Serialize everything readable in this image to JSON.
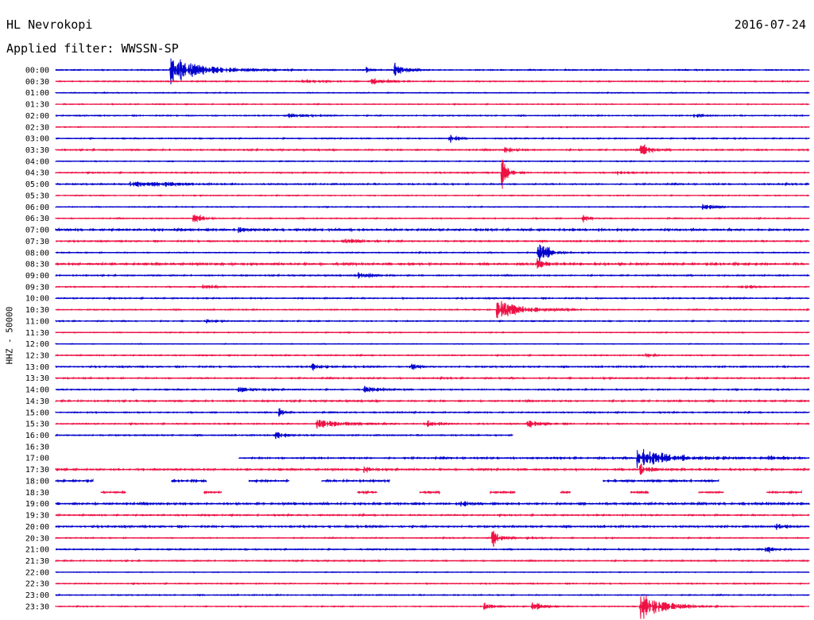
{
  "header": {
    "station": "HL Nevrokopi",
    "date": "2016-07-24",
    "filter": "Applied filter: WWSSN-SP"
  },
  "chart_data": {
    "type": "line",
    "ylabel": "HHZ - 50000",
    "colors": [
      "#0000cc",
      "#ee1144"
    ],
    "x_range_minutes": [
      0,
      30
    ],
    "rows": [
      {
        "label": "00:00",
        "start": 0,
        "end": 30,
        "noise": 0.6,
        "events": [
          {
            "t": 4.6,
            "amp": 18,
            "dur": 1.8
          },
          {
            "t": 13.5,
            "amp": 9,
            "dur": 0.6
          },
          {
            "t": 12.4,
            "amp": 3,
            "dur": 0.4
          }
        ]
      },
      {
        "label": "00:30",
        "start": 0,
        "end": 30,
        "noise": 0.6,
        "events": [
          {
            "t": 12.6,
            "amp": 3,
            "dur": 0.8
          },
          {
            "t": 9.8,
            "amp": 1.5,
            "dur": 1.2
          }
        ]
      },
      {
        "label": "01:00",
        "start": 0,
        "end": 30,
        "noise": 0.5,
        "events": []
      },
      {
        "label": "01:30",
        "start": 0,
        "end": 30,
        "noise": 0.5,
        "events": []
      },
      {
        "label": "02:00",
        "start": 0,
        "end": 30,
        "noise": 0.6,
        "events": [
          {
            "t": 9.2,
            "amp": 3,
            "dur": 0.8
          },
          {
            "t": 25.4,
            "amp": 1.5,
            "dur": 0.6
          }
        ]
      },
      {
        "label": "02:30",
        "start": 0,
        "end": 30,
        "noise": 0.5,
        "events": []
      },
      {
        "label": "03:00",
        "start": 0,
        "end": 30,
        "noise": 0.6,
        "events": [
          {
            "t": 15.7,
            "amp": 8,
            "dur": 0.3
          }
        ]
      },
      {
        "label": "03:30",
        "start": 0,
        "end": 30,
        "noise": 0.8,
        "events": [
          {
            "t": 23.3,
            "amp": 11,
            "dur": 0.4
          },
          {
            "t": 17.9,
            "amp": 3,
            "dur": 0.5
          }
        ]
      },
      {
        "label": "04:00",
        "start": 0,
        "end": 30,
        "noise": 0.5,
        "events": []
      },
      {
        "label": "04:30",
        "start": 0,
        "end": 30,
        "noise": 0.7,
        "events": [
          {
            "t": 17.8,
            "amp": 25,
            "dur": 0.3
          },
          {
            "t": 22.3,
            "amp": 2,
            "dur": 0.6
          }
        ]
      },
      {
        "label": "05:00",
        "start": 0,
        "end": 30,
        "noise": 0.8,
        "events": [
          {
            "t": 3.0,
            "amp": 4,
            "dur": 1.2
          },
          {
            "t": 4.4,
            "amp": 2,
            "dur": 0.8
          }
        ]
      },
      {
        "label": "05:30",
        "start": 0,
        "end": 30,
        "noise": 0.5,
        "events": []
      },
      {
        "label": "06:00",
        "start": 0,
        "end": 30,
        "noise": 0.5,
        "events": [
          {
            "t": 25.8,
            "amp": 3,
            "dur": 0.8
          }
        ]
      },
      {
        "label": "06:30",
        "start": 0,
        "end": 30,
        "noise": 0.6,
        "events": [
          {
            "t": 5.5,
            "amp": 9,
            "dur": 0.4
          },
          {
            "t": 21.0,
            "amp": 6,
            "dur": 0.3
          }
        ]
      },
      {
        "label": "07:00",
        "start": 0,
        "end": 30,
        "noise": 1.2,
        "events": [
          {
            "t": 7.3,
            "amp": 4,
            "dur": 0.3
          }
        ]
      },
      {
        "label": "07:30",
        "start": 0,
        "end": 30,
        "noise": 0.8,
        "events": [
          {
            "t": 11.5,
            "amp": 2,
            "dur": 1.2
          }
        ]
      },
      {
        "label": "08:00",
        "start": 0,
        "end": 30,
        "noise": 0.6,
        "events": [
          {
            "t": 19.2,
            "amp": 22,
            "dur": 0.5
          }
        ]
      },
      {
        "label": "08:30",
        "start": 0,
        "end": 30,
        "noise": 1.2,
        "events": [
          {
            "t": 19.2,
            "amp": 7,
            "dur": 0.4
          }
        ]
      },
      {
        "label": "09:00",
        "start": 0,
        "end": 30,
        "noise": 0.7,
        "events": [
          {
            "t": 12.1,
            "amp": 5,
            "dur": 0.7
          }
        ]
      },
      {
        "label": "09:30",
        "start": 0,
        "end": 30,
        "noise": 0.6,
        "events": [
          {
            "t": 27.3,
            "amp": 2,
            "dur": 1.0
          },
          {
            "t": 5.9,
            "amp": 4,
            "dur": 0.5
          }
        ]
      },
      {
        "label": "10:00",
        "start": 0,
        "end": 30,
        "noise": 0.7,
        "events": []
      },
      {
        "label": "10:30",
        "start": 0,
        "end": 30,
        "noise": 0.6,
        "events": [
          {
            "t": 17.6,
            "amp": 13,
            "dur": 1.6
          }
        ]
      },
      {
        "label": "11:00",
        "start": 0,
        "end": 30,
        "noise": 0.6,
        "events": [
          {
            "t": 6.0,
            "amp": 3,
            "dur": 0.4
          }
        ]
      },
      {
        "label": "11:30",
        "start": 0,
        "end": 30,
        "noise": 0.5,
        "events": []
      },
      {
        "label": "12:00",
        "start": 0,
        "end": 30,
        "noise": 0.4,
        "events": []
      },
      {
        "label": "12:30",
        "start": 0,
        "end": 30,
        "noise": 0.6,
        "events": [
          {
            "t": 23.5,
            "amp": 2,
            "dur": 0.5
          }
        ]
      },
      {
        "label": "13:00",
        "start": 0,
        "end": 30,
        "noise": 0.8,
        "events": [
          {
            "t": 10.2,
            "amp": 4,
            "dur": 0.6
          },
          {
            "t": 14.2,
            "amp": 6,
            "dur": 0.3
          }
        ]
      },
      {
        "label": "13:30",
        "start": 0,
        "end": 30,
        "noise": 0.8,
        "events": []
      },
      {
        "label": "14:00",
        "start": 0,
        "end": 30,
        "noise": 0.7,
        "events": [
          {
            "t": 7.3,
            "amp": 3,
            "dur": 1.0
          },
          {
            "t": 12.3,
            "amp": 4,
            "dur": 0.8
          }
        ]
      },
      {
        "label": "14:30",
        "start": 0,
        "end": 30,
        "noise": 0.9,
        "events": []
      },
      {
        "label": "15:00",
        "start": 0,
        "end": 30,
        "noise": 0.7,
        "events": [
          {
            "t": 8.9,
            "amp": 5,
            "dur": 0.3
          }
        ]
      },
      {
        "label": "15:30",
        "start": 0,
        "end": 30,
        "noise": 0.7,
        "events": [
          {
            "t": 10.4,
            "amp": 6,
            "dur": 1.6
          },
          {
            "t": 14.8,
            "amp": 4,
            "dur": 0.7
          },
          {
            "t": 18.8,
            "amp": 4,
            "dur": 0.8
          }
        ]
      },
      {
        "label": "16:00",
        "start": 0,
        "end": 18.2,
        "noise": 0.7,
        "events": [
          {
            "t": 8.8,
            "amp": 4,
            "dur": 0.6
          }
        ]
      },
      {
        "label": "16:30",
        "start": 0,
        "end": 0,
        "noise": 0,
        "events": []
      },
      {
        "label": "17:00",
        "start": 7.3,
        "end": 30,
        "noise": 1.0,
        "events": [
          {
            "t": 23.2,
            "amp": 16,
            "dur": 1.5
          },
          {
            "t": 28.4,
            "amp": 3,
            "dur": 0.6
          }
        ]
      },
      {
        "label": "17:30",
        "start": 0,
        "end": 30,
        "noise": 1.0,
        "events": [
          {
            "t": 23.3,
            "amp": 8,
            "dur": 0.5
          },
          {
            "t": 12.3,
            "amp": 4,
            "dur": 0.4
          }
        ]
      },
      {
        "label": "18:00",
        "start": 0,
        "end": 30,
        "noise": 1.2,
        "segments": [
          [
            0,
            1.5
          ],
          [
            4.6,
            6.0
          ],
          [
            7.7,
            9.3
          ],
          [
            10.6,
            13.3
          ],
          [
            21.8,
            26.4
          ]
        ],
        "events": []
      },
      {
        "label": "18:30",
        "start": 0,
        "end": 30,
        "noise": 1.1,
        "segments": [
          [
            1.8,
            2.8
          ],
          [
            5.9,
            6.6
          ],
          [
            12.0,
            12.8
          ],
          [
            14.5,
            15.3
          ],
          [
            17.3,
            18.3
          ],
          [
            20.1,
            20.5
          ],
          [
            22.9,
            23.6
          ],
          [
            25.6,
            26.6
          ],
          [
            28.3,
            29.7
          ]
        ],
        "events": []
      },
      {
        "label": "19:00",
        "start": 0,
        "end": 30,
        "noise": 1.2,
        "events": [
          {
            "t": 16.1,
            "amp": 3,
            "dur": 0.6
          }
        ]
      },
      {
        "label": "19:30",
        "start": 0,
        "end": 30,
        "noise": 0.8,
        "events": []
      },
      {
        "label": "20:00",
        "start": 0,
        "end": 30,
        "noise": 1.0,
        "events": [
          {
            "t": 28.7,
            "amp": 4,
            "dur": 0.5
          }
        ]
      },
      {
        "label": "20:30",
        "start": 0,
        "end": 30,
        "noise": 0.6,
        "events": [
          {
            "t": 17.4,
            "amp": 13,
            "dur": 0.4
          },
          {
            "t": 18.8,
            "amp": 3,
            "dur": 0.4
          }
        ]
      },
      {
        "label": "21:00",
        "start": 0,
        "end": 30,
        "noise": 0.7,
        "events": [
          {
            "t": 28.3,
            "amp": 5,
            "dur": 0.3
          }
        ]
      },
      {
        "label": "21:30",
        "start": 0,
        "end": 30,
        "noise": 0.7,
        "events": []
      },
      {
        "label": "22:00",
        "start": 0,
        "end": 30,
        "noise": 0.4,
        "events": []
      },
      {
        "label": "22:30",
        "start": 0,
        "end": 30,
        "noise": 0.6,
        "events": []
      },
      {
        "label": "23:00",
        "start": 0,
        "end": 30,
        "noise": 0.6,
        "events": []
      },
      {
        "label": "23:30",
        "start": 0,
        "end": 30,
        "noise": 0.5,
        "events": [
          {
            "t": 23.3,
            "amp": 18,
            "dur": 1.3
          },
          {
            "t": 19.0,
            "amp": 7,
            "dur": 0.5
          },
          {
            "t": 17.1,
            "amp": 4,
            "dur": 0.6
          }
        ]
      }
    ]
  }
}
